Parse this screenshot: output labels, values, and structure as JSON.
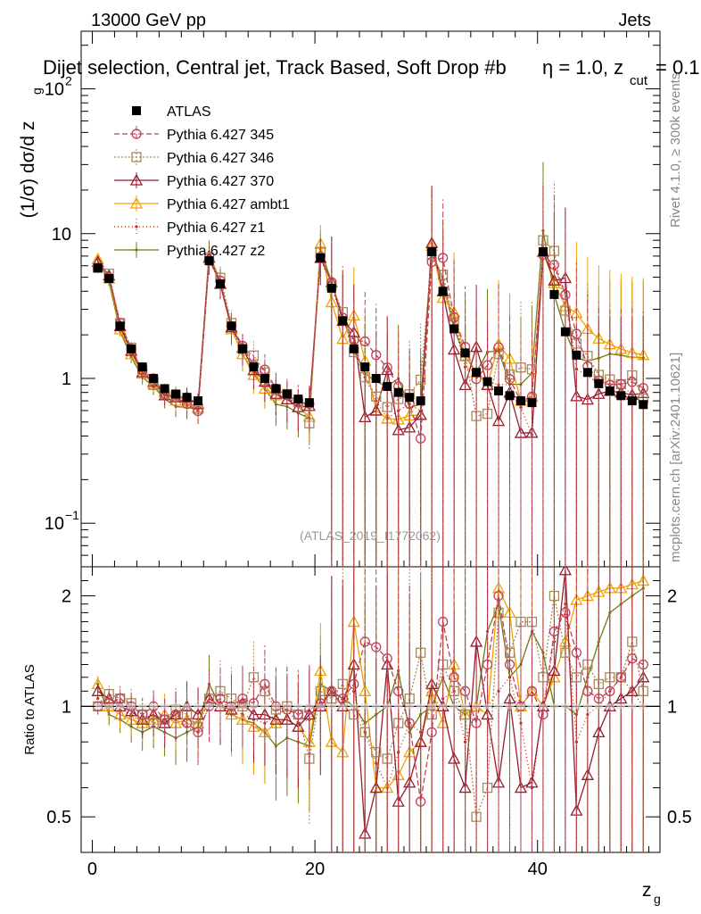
{
  "header": {
    "left": "13000 GeV pp",
    "right": "Jets",
    "title_main": "Dijet selection, Central jet, Track Based, Soft Drop #b",
    "title_eta": "η = 1.0, z",
    "title_sub": "cut",
    "title_end": " = 0.1"
  },
  "side": {
    "rivet": "Rivet 4.1.0, ≥ 300k events",
    "mcplots": "mcplots.cern.ch [arXiv:2401.10621]"
  },
  "watermark": "(ATLAS_2019_I1772062)",
  "axes": {
    "ylabel_main": "(1/σ) dσ/d z",
    "ylabel_sub": "g",
    "ylabel_ratio": "Ratio to ATLAS",
    "xlabel": "z",
    "xlabel_sub": "g",
    "xticks": [
      "0",
      "20",
      "40"
    ],
    "yticks_main": [
      "10",
      "1",
      "10"
    ],
    "yticks_main_exp": [
      "2",
      "",
      "−1"
    ],
    "yticks_ratio": [
      "2",
      "1",
      "0.5"
    ]
  },
  "legend": [
    {
      "label": "ATLAS",
      "color": "#000000",
      "marker": "square-filled",
      "dash": ""
    },
    {
      "label": "Pythia 6.427 345",
      "color": "#c0405a",
      "marker": "circle",
      "dash": "6,3"
    },
    {
      "label": "Pythia 6.427 346",
      "color": "#a8895a",
      "marker": "square",
      "dash": "2,2"
    },
    {
      "label": "Pythia 6.427 370",
      "color": "#9b1b2e",
      "marker": "triangle",
      "dash": ""
    },
    {
      "label": "Pythia 6.427 ambt1",
      "color": "#f0a300",
      "marker": "triangle",
      "dash": ""
    },
    {
      "label": "Pythia 6.427 z1",
      "color": "#cc2200",
      "marker": "dot",
      "dash": "1,3"
    },
    {
      "label": "Pythia 6.427 z2",
      "color": "#6f7a10",
      "marker": "dot",
      "dash": ""
    }
  ],
  "chart_data": {
    "type": "scatter",
    "xlim": [
      -1,
      51
    ],
    "ylim": [
      0.05,
      250
    ],
    "ylim_ratio": [
      0.4,
      2.4
    ],
    "yscale": "log",
    "x": [
      0.5,
      1.5,
      2.5,
      3.5,
      4.5,
      5.5,
      6.5,
      7.5,
      8.5,
      9.5,
      10.5,
      11.5,
      12.5,
      13.5,
      14.5,
      15.5,
      16.5,
      17.5,
      18.5,
      19.5,
      20.5,
      21.5,
      22.5,
      23.5,
      24.5,
      25.5,
      26.5,
      27.5,
      28.5,
      29.5,
      30.5,
      31.5,
      32.5,
      33.5,
      34.5,
      35.5,
      36.5,
      37.5,
      38.5,
      39.5,
      40.5,
      41.5,
      42.5,
      43.5,
      44.5,
      45.5,
      46.5,
      47.5,
      48.5,
      49.5
    ],
    "series": [
      {
        "name": "ATLAS",
        "values": [
          5.8,
          4.9,
          2.3,
          1.6,
          1.2,
          1.0,
          0.85,
          0.78,
          0.74,
          0.7,
          6.5,
          4.5,
          2.3,
          1.6,
          1.2,
          1.0,
          0.85,
          0.78,
          0.72,
          0.68,
          6.8,
          4.2,
          2.5,
          1.6,
          1.2,
          1.0,
          0.88,
          0.8,
          0.74,
          0.7,
          7.5,
          4.0,
          2.2,
          1.5,
          1.1,
          0.95,
          0.82,
          0.76,
          0.7,
          0.68,
          7.5,
          3.8,
          2.1,
          1.45,
          1.1,
          0.92,
          0.82,
          0.76,
          0.7,
          0.66
        ]
      },
      {
        "name": "Pythia 6.427 345",
        "ratio": [
          1.0,
          1.02,
          1.05,
          1.0,
          0.95,
          1.0,
          0.92,
          0.95,
          0.9,
          0.85,
          1.0,
          1.05,
          1.0,
          1.05,
          1.02,
          1.15,
          1.0,
          0.98,
          0.95,
          0.98,
          1.02,
          1.1,
          1.05,
          1.15,
          1.5,
          1.45,
          1.35,
          1.1,
          0.9,
          0.55,
          0.85,
          1.7,
          1.2,
          1.1,
          0.9,
          1.3,
          2.0,
          1.3,
          1.0,
          1.1,
          0.95,
          1.6,
          1.8,
          1.4,
          1.1,
          1.05,
          1.1,
          1.2,
          1.35,
          1.3
        ]
      },
      {
        "name": "Pythia 6.427 346",
        "ratio": [
          1.0,
          1.08,
          1.05,
          1.02,
          0.95,
          0.9,
          0.92,
          0.98,
          0.95,
          0.88,
          1.05,
          1.1,
          1.05,
          1.0,
          1.2,
          1.1,
          0.98,
          1.0,
          0.95,
          0.72,
          1.1,
          1.05,
          1.15,
          0.95,
          0.85,
          0.75,
          0.72,
          0.9,
          1.05,
          1.4,
          0.95,
          1.3,
          1.1,
          0.95,
          0.5,
          0.6,
          1.8,
          1.4,
          1.7,
          1.7,
          1.2,
          2.0,
          1.4,
          1.2,
          1.3,
          1.15,
          1.2,
          1.2,
          1.5,
          1.1
        ]
      },
      {
        "name": "Pythia 6.427 370",
        "ratio": [
          1.1,
          1.05,
          1.0,
          0.97,
          0.92,
          0.95,
          0.9,
          0.95,
          1.0,
          0.95,
          1.05,
          1.0,
          0.98,
          1.02,
          0.95,
          0.95,
          0.92,
          0.92,
          0.88,
          0.95,
          1.0,
          1.1,
          1.0,
          1.3,
          0.45,
          0.6,
          1.3,
          0.55,
          0.62,
          0.8,
          1.15,
          1.0,
          0.72,
          0.6,
          1.5,
          0.95,
          0.62,
          1.05,
          0.6,
          0.62,
          1.0,
          1.25,
          2.35,
          0.52,
          0.65,
          0.85,
          1.0,
          1.05,
          1.1,
          1.2
        ]
      },
      {
        "name": "Pythia 6.427 ambt1",
        "ratio": [
          1.15,
          1.0,
          0.95,
          0.92,
          0.9,
          0.92,
          0.95,
          0.9,
          0.92,
          0.9,
          1.05,
          1.0,
          0.95,
          0.92,
          0.88,
          0.85,
          0.9,
          0.92,
          0.88,
          0.8,
          1.25,
          0.8,
          0.75,
          1.7,
          1.1,
          0.6,
          0.6,
          0.65,
          0.75,
          0.8,
          1.1,
          0.9,
          1.3,
          0.95,
          1.0,
          0.95,
          2.1,
          1.8,
          1.0,
          1.1,
          1.0,
          1.2,
          1.5,
          1.95,
          2.0,
          2.05,
          2.1,
          2.1,
          2.15,
          2.2
        ]
      },
      {
        "name": "Pythia 6.427 z1",
        "ratio": [
          1.05,
          1.0,
          0.98,
          0.95,
          0.9,
          0.88,
          0.9,
          0.92,
          0.88,
          0.85,
          1.0,
          1.02,
          1.0,
          0.95,
          0.92,
          0.9,
          0.95,
          0.98,
          0.9,
          0.92,
          1.0,
          1.0,
          1.05,
          1.1,
          0.85,
          0.7,
          0.6,
          0.75,
          0.9,
          0.85,
          1.0,
          1.05,
          1.1,
          0.8,
          1.0,
          1.0,
          1.1,
          1.2,
          0.9,
          0.6,
          1.0,
          1.5,
          1.9,
          0.8,
          0.95,
          1.0,
          1.1,
          1.2,
          1.1,
          1.0
        ]
      },
      {
        "name": "Pythia 6.427 z2",
        "ratio": [
          1.15,
          0.95,
          0.92,
          0.88,
          0.85,
          0.88,
          0.85,
          0.82,
          0.85,
          0.88,
          1.15,
          1.0,
          0.95,
          0.92,
          0.9,
          0.85,
          0.78,
          0.82,
          0.8,
          0.78,
          1.15,
          1.1,
          1.05,
          1.0,
          0.9,
          0.95,
          1.0,
          1.25,
          0.85,
          0.95,
          1.0,
          1.2,
          1.0,
          0.95,
          1.0,
          1.6,
          1.9,
          1.2,
          1.3,
          1.6,
          1.4,
          1.0,
          1.0,
          0.95,
          1.2,
          1.5,
          1.8,
          1.9,
          2.0,
          2.1
        ]
      }
    ]
  }
}
